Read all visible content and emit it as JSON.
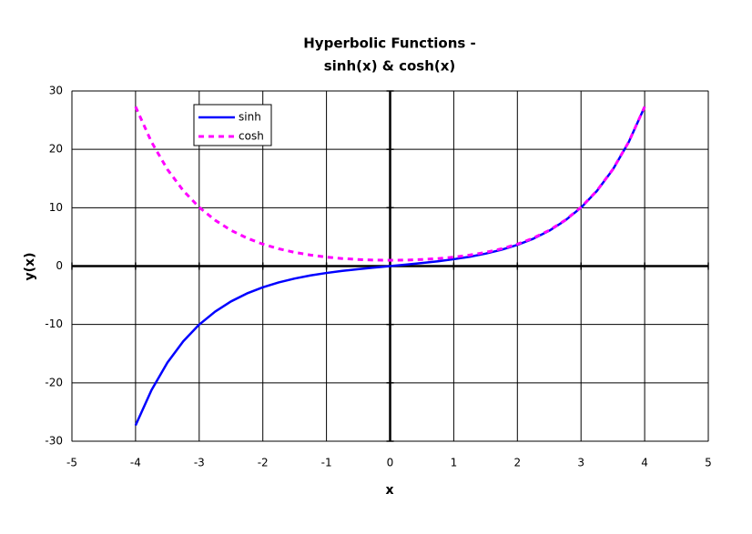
{
  "chart_data": {
    "type": "line",
    "title": [
      "Hyperbolic Functions -",
      "sinh(x) & cosh(x)"
    ],
    "x_label": "x",
    "y_label": "y(x)",
    "x": [
      -4,
      -3.75,
      -3.5,
      -3.25,
      -3,
      -2.75,
      -2.5,
      -2.25,
      -2,
      -1.75,
      -1.5,
      -1.25,
      -1,
      -0.75,
      -0.5,
      -0.25,
      0,
      0.25,
      0.5,
      0.75,
      1,
      1.25,
      1.5,
      1.75,
      2,
      2.25,
      2.5,
      2.75,
      3,
      3.25,
      3.5,
      3.75,
      4
    ],
    "series": [
      {
        "name": "sinh",
        "color": "#0000ff",
        "dashed": false,
        "values": [
          -27.29,
          -21.25,
          -16.54,
          -12.88,
          -10.02,
          -7.8,
          -6.05,
          -4.69,
          -3.63,
          -2.79,
          -2.13,
          -1.6,
          -1.18,
          -0.82,
          -0.52,
          -0.25,
          0,
          0.25,
          0.52,
          0.82,
          1.18,
          1.6,
          2.13,
          2.79,
          3.63,
          4.69,
          6.05,
          7.8,
          10.02,
          12.88,
          16.54,
          21.25,
          27.29
        ]
      },
      {
        "name": "cosh",
        "color": "#ff00ff",
        "dashed": true,
        "values": [
          27.31,
          21.27,
          16.57,
          12.92,
          10.07,
          7.86,
          6.13,
          4.8,
          3.76,
          2.96,
          2.35,
          1.89,
          1.54,
          1.29,
          1.13,
          1.03,
          1,
          1.03,
          1.13,
          1.29,
          1.54,
          1.89,
          2.35,
          2.96,
          3.76,
          4.8,
          6.13,
          7.86,
          10.07,
          12.92,
          16.57,
          21.27,
          27.31
        ]
      }
    ],
    "xlim": [
      -5,
      5
    ],
    "xticks": [
      -5,
      -4,
      -3,
      -2,
      -1,
      0,
      1,
      2,
      3,
      4,
      5
    ],
    "ylim": [
      -30,
      30
    ],
    "yticks": [
      -30,
      -20,
      -10,
      0,
      10,
      20,
      30
    ],
    "grid": true
  }
}
